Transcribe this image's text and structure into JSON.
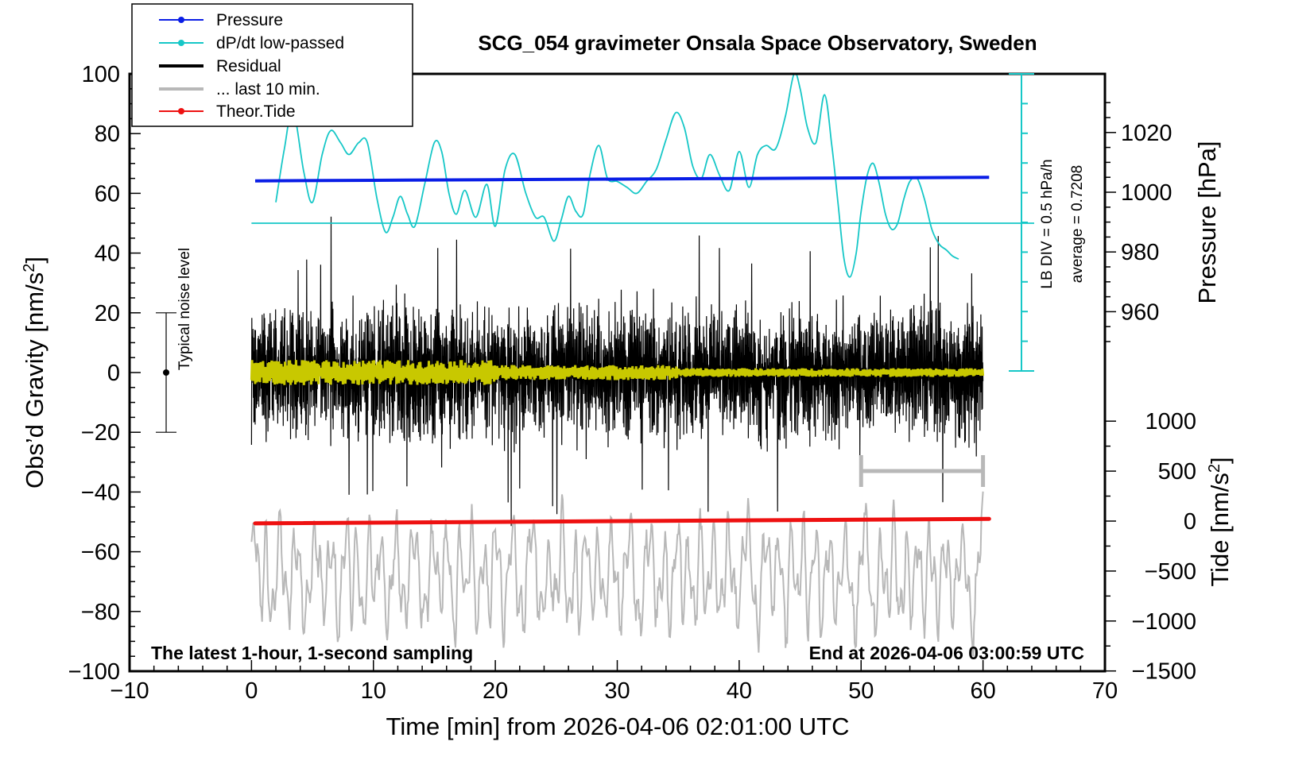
{
  "chart_data": {
    "type": "line",
    "title": "SCG_054 gravimeter Onsala Space Observatory, Sweden",
    "xlabel": "Time [min] from 2026-04-06 02:01:00 UTC",
    "ylabel_prefix": "Obs’d Gravity [nm/s",
    "ylabel_sup": "2",
    "ylabel_suffix": "]",
    "y2_label": "Pressure [hPa]",
    "y3_label_prefix": "Tide [nm/s",
    "y3_label_sup": "2",
    "y3_label_suffix": "]",
    "xlim": [
      -10,
      70
    ],
    "ylim": [
      -100,
      100
    ],
    "x_ticks": [
      "−10",
      "0",
      "10",
      "20",
      "30",
      "40",
      "50",
      "60",
      "70"
    ],
    "y_ticks": [
      "−100",
      "−80",
      "−60",
      "−40",
      "−20",
      "0",
      "20",
      "40",
      "60",
      "80",
      "100"
    ],
    "pressure_ticks": [
      "960",
      "980",
      "1000",
      "1020"
    ],
    "pressure_tick_values": [
      960,
      980,
      1000,
      1020
    ],
    "tide_ticks": [
      "−1500",
      "−1000",
      "−500",
      "0",
      "500",
      "1000"
    ],
    "tide_tick_values": [
      -1500,
      -1000,
      -500,
      0,
      500,
      1000
    ],
    "legend": {
      "pressure": "Pressure",
      "dpdt": "dP/dt low-passed",
      "residual": "Residual",
      "last10": "... last 10 min.",
      "tide": "Theor.Tide"
    },
    "bottom_left_note": "The latest 1-hour, 1-second sampling",
    "bottom_right_note": "End at 2026-04-06 03:00:59 UTC",
    "noise_label": "Typical noise level",
    "noise_bar": {
      "x": -7,
      "center": 0,
      "low": -20,
      "high": 20
    },
    "lb_div_label": "LB DIV = 0.5 hPa/h",
    "average_label": "average = 0.7208",
    "last10_bracket": {
      "from": 50,
      "to": 60
    },
    "series": {
      "pressure_hpa": {
        "x": [
          0.3,
          10,
          20,
          30,
          40,
          50,
          60.5
        ],
        "values": [
          1003.8,
          1004.0,
          1004.2,
          1004.4,
          1004.6,
          1004.8,
          1005.0
        ],
        "color": "#0a1ee6"
      },
      "dpdt_lowpassed": {
        "x": [
          2,
          2.7,
          3.4,
          4.3,
          5.0,
          5.8,
          6.5,
          7.3,
          8.0,
          8.8,
          9.5,
          10.3,
          11.0,
          11.6,
          12.2,
          12.8,
          13.4,
          14.2,
          15.0,
          15.6,
          16.2,
          16.8,
          17.5,
          18.4,
          19.3,
          20.0,
          20.8,
          21.6,
          22.5,
          23.3,
          24.0,
          24.8,
          25.4,
          26.0,
          26.6,
          27.2,
          27.8,
          28.5,
          29.2,
          30.0,
          30.8,
          31.6,
          32.4,
          33.2,
          34.0,
          34.8,
          35.5,
          36.2,
          36.9,
          37.6,
          38.4,
          39.2,
          40.0,
          40.8,
          41.5,
          42.2,
          43.0,
          43.8,
          44.5,
          45.0,
          45.6,
          46.3,
          47.0,
          47.6,
          48.1,
          48.6,
          49.1,
          49.6,
          50.0,
          50.5,
          51.0,
          51.5,
          52.0,
          52.5,
          53.0,
          53.5,
          54.0,
          54.6,
          55.2,
          55.8,
          56.4,
          57.0,
          57.5,
          58.0
        ],
        "values": [
          57,
          75,
          88,
          67,
          57,
          73,
          81,
          77,
          73,
          77,
          77,
          58,
          47,
          52,
          59,
          53,
          49,
          63,
          77,
          74,
          60,
          53,
          61,
          52,
          63,
          49,
          68,
          73,
          60,
          52,
          52,
          44,
          51,
          59,
          54,
          53,
          67,
          76,
          65,
          64,
          62,
          60,
          64,
          68,
          78,
          87,
          82,
          69,
          65,
          73,
          66,
          61,
          74,
          62,
          73,
          76,
          75,
          86,
          100,
          95,
          82,
          77,
          93,
          76,
          57,
          38,
          32,
          40,
          54,
          66,
          70,
          63,
          53,
          48,
          50,
          58,
          64,
          65,
          58,
          48,
          43,
          41,
          39,
          38
        ],
        "color": "#16c7c7"
      },
      "dpdt_average_line": {
        "value": 50,
        "color": "#16c7c7"
      },
      "residual": {
        "x_range": [
          0,
          60
        ],
        "center": 0,
        "typical_amplitude": 15,
        "max_amplitude": 44,
        "color": "#000000"
      },
      "residual_smoothed": {
        "x_range": [
          0,
          60
        ],
        "center": 0,
        "amplitude": 3,
        "color": "#c8c800"
      },
      "last_10_min_expanded": {
        "x_range": [
          0,
          60
        ],
        "center": -68,
        "amplitude": 15,
        "max_amplitude": 30,
        "color": "#b8b8b8"
      },
      "theoretical_tide": {
        "x": [
          0.3,
          60.5
        ],
        "values": [
          -50.5,
          -49.0
        ],
        "color": "#ee1111"
      }
    }
  }
}
